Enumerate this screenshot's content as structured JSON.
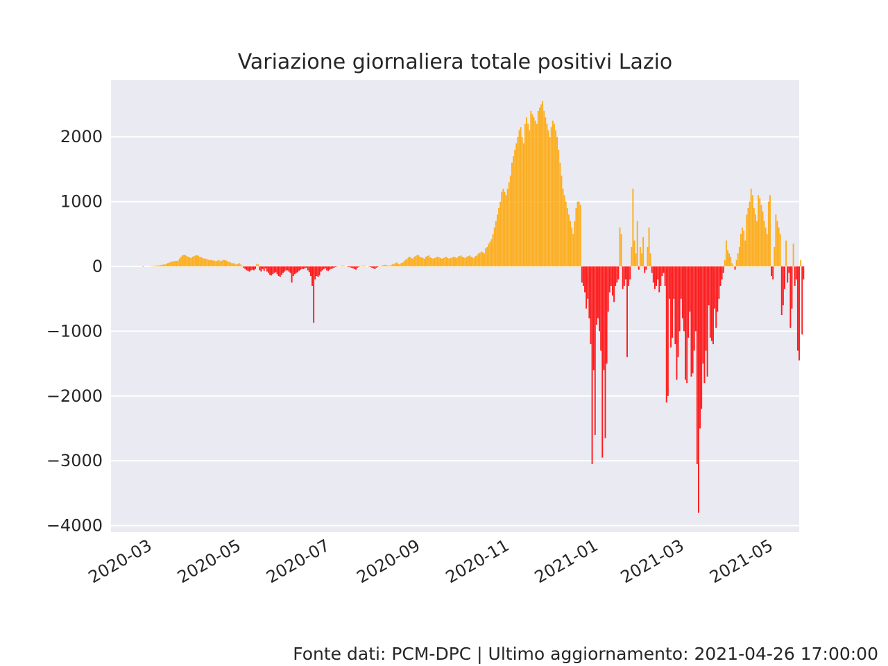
{
  "chart_data": {
    "type": "bar",
    "title": "Variazione giornaliera totale positivi Lazio",
    "xlabel": "",
    "ylabel": "",
    "ylim": [
      -4100,
      2880
    ],
    "xlim": [
      "2020-02-04",
      "2021-05-21"
    ],
    "grid": true,
    "legend": "none",
    "positive_color": "#ffa500",
    "negative_color": "#ff0000",
    "plot_background": "#eaeaf2",
    "y_ticks": [
      2000,
      1000,
      0,
      -1000,
      -2000,
      -3000,
      -4000
    ],
    "y_tick_labels": [
      "2000",
      "1000",
      "0",
      "−1000",
      "−2000",
      "−3000",
      "−4000"
    ],
    "x_ticks": [
      "2020-03-01",
      "2020-05-01",
      "2020-07-01",
      "2020-09-01",
      "2020-11-01",
      "2021-01-01",
      "2021-03-01",
      "2021-05-01"
    ],
    "x_tick_labels": [
      "2020-03",
      "2020-05",
      "2020-07",
      "2020-09",
      "2020-11",
      "2021-01",
      "2021-03",
      "2021-05"
    ],
    "series": [
      {
        "start_date": "2020-02-24",
        "values": [
          0,
          0,
          -5,
          0,
          0,
          0,
          0,
          3,
          5,
          8,
          10,
          12,
          15,
          15,
          20,
          25,
          30,
          30,
          40,
          50,
          60,
          70,
          75,
          80,
          85,
          85,
          90,
          120,
          150,
          170,
          180,
          175,
          160,
          150,
          140,
          130,
          150,
          160,
          170,
          170,
          165,
          150,
          140,
          130,
          120,
          120,
          110,
          100,
          100,
          100,
          90,
          90,
          80,
          90,
          100,
          80,
          90,
          100,
          100,
          90,
          80,
          70,
          60,
          50,
          50,
          40,
          30,
          40,
          50,
          30,
          10,
          -20,
          -40,
          -60,
          -70,
          -80,
          -60,
          -50,
          -60,
          -40,
          40,
          30,
          -60,
          -80,
          -40,
          -70,
          -30,
          -80,
          -100,
          -130,
          -140,
          -120,
          -100,
          -90,
          -120,
          -150,
          -160,
          -130,
          -100,
          -80,
          -60,
          -60,
          -80,
          -100,
          -250,
          -150,
          -120,
          -100,
          -90,
          -70,
          -50,
          -40,
          -40,
          -30,
          -20,
          -60,
          -90,
          -150,
          -300,
          -870,
          -200,
          -150,
          -160,
          -140,
          -80,
          -60,
          -40,
          -30,
          -60,
          -70,
          -50,
          -40,
          -30,
          -20,
          -10,
          -5,
          0,
          5,
          10,
          15,
          10,
          0,
          -5,
          -10,
          -15,
          -20,
          -30,
          -40,
          -50,
          -20,
          -10,
          5,
          10,
          15,
          10,
          5,
          0,
          -5,
          -10,
          -20,
          -30,
          -40,
          -20,
          -10,
          0,
          10,
          15,
          20,
          25,
          20,
          15,
          10,
          20,
          30,
          40,
          50,
          60,
          40,
          30,
          50,
          60,
          80,
          100,
          120,
          140,
          150,
          130,
          120,
          150,
          160,
          180,
          170,
          150,
          140,
          130,
          120,
          150,
          160,
          170,
          140,
          130,
          120,
          130,
          140,
          150,
          140,
          130,
          120,
          130,
          140,
          150,
          130,
          120,
          130,
          140,
          150,
          140,
          130,
          150,
          160,
          170,
          150,
          140,
          130,
          150,
          160,
          170,
          150,
          140,
          130,
          160,
          170,
          200,
          210,
          230,
          220,
          200,
          280,
          300,
          350,
          380,
          420,
          500,
          600,
          700,
          800,
          900,
          1000,
          1150,
          1200,
          1150,
          1100,
          1200,
          1300,
          1400,
          1600,
          1700,
          1800,
          1900,
          2000,
          2100,
          2150,
          2000,
          1900,
          2200,
          2300,
          2200,
          2100,
          2400,
          2350,
          2300,
          2250,
          2200,
          2400,
          2450,
          2500,
          2550,
          2400,
          2300,
          2200,
          2100,
          2000,
          2150,
          2250,
          2200,
          2100,
          2000,
          1800,
          1600,
          1400,
          1200,
          1100,
          1000,
          900,
          800,
          700,
          600,
          500,
          700,
          900,
          1000,
          1000,
          950,
          -250,
          -300,
          -400,
          -650,
          -500,
          -800,
          -1200,
          -3050,
          -1600,
          -2600,
          -900,
          -800,
          -1000,
          -1300,
          -2950,
          -1600,
          -2650,
          -1500,
          -700,
          -400,
          -300,
          -450,
          -550,
          -300,
          -250,
          -200,
          600,
          500,
          -350,
          -300,
          -200,
          -1400,
          -300,
          -200,
          300,
          1200,
          400,
          200,
          700,
          -50,
          300,
          200,
          450,
          -100,
          -50,
          300,
          600,
          200,
          -100,
          -250,
          -350,
          -300,
          -200,
          -400,
          -300,
          -150,
          -100,
          -300,
          -2100,
          -2000,
          -500,
          -1250,
          -1100,
          -500,
          -1200,
          -1750,
          -1400,
          -1000,
          -500,
          -800,
          -1000,
          -1750,
          -1800,
          -1100,
          -700,
          -1700,
          -1650,
          -1300,
          -1000,
          -3050,
          -3800,
          -2500,
          -2200,
          -1500,
          -1800,
          -1300,
          -1700,
          -600,
          -1100,
          -1150,
          -1200,
          -650,
          -950,
          -700,
          -500,
          -300,
          -200,
          -100,
          100,
          400,
          250,
          200,
          150,
          50,
          10,
          -50,
          100,
          200,
          300,
          500,
          600,
          550,
          400,
          800,
          900,
          1000,
          1200,
          1100,
          900,
          800,
          700,
          1100,
          1050,
          950,
          850,
          700,
          600,
          500,
          1000,
          1100,
          -150,
          -200,
          300,
          800,
          700,
          600,
          500,
          -750,
          -600,
          -350,
          400,
          -250,
          -100,
          -950,
          -650,
          350,
          -300,
          -200,
          -1300,
          -1450,
          100,
          -1050,
          -200
        ]
      }
    ]
  },
  "footer": {
    "source_text": "Fonte dati: PCM-DPC | Ultimo aggiornamento: 2021-04-26 17:00:00"
  }
}
